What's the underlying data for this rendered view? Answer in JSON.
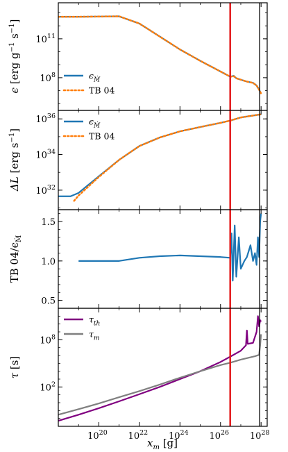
{
  "chart_data": {
    "type": "line",
    "x": {
      "label": "x_m [g]",
      "label_parts": {
        "var": "x",
        "sub": "m",
        "unit": " [g]"
      },
      "scale": "log",
      "lim": [
        1e+18,
        2e+28
      ],
      "major_ticks": [
        1e+20,
        1e+22,
        1e+24,
        1e+26,
        1e+28
      ],
      "tick_labels": [
        {
          "base": "10",
          "exp": "20"
        },
        {
          "base": "10",
          "exp": "22"
        },
        {
          "base": "10",
          "exp": "24"
        },
        {
          "base": "10",
          "exp": "26"
        },
        {
          "base": "10",
          "exp": "28"
        }
      ]
    },
    "vlines": [
      {
        "x": 3e+26,
        "color": "#e31a1c",
        "width": 2.5
      },
      {
        "x": 8.5e+27,
        "color": "#000000",
        "width": 1.3
      }
    ],
    "panels": [
      {
        "id": "epsilon",
        "ylabel": "ϵ [erg g⁻¹ s⁻¹]",
        "ylabel_parts": {
          "var": "ϵ",
          "unit": " [erg g",
          "exp1": "−1",
          "mid": " s",
          "exp2": "−1",
          "end": "]"
        },
        "yscale": "log",
        "ylim": [
          300000.0,
          60000000000000.0
        ],
        "yticks": [
          {
            "value": 100000000.0,
            "base": "10",
            "exp": "8"
          },
          {
            "value": 100000000000.0,
            "base": "10",
            "exp": "11"
          }
        ],
        "legend": {
          "placement": "lower-left",
          "entries": [
            {
              "label": "ϵ",
              "sub": "Ṁ",
              "style": "solid",
              "color": "#1f77b4"
            },
            {
              "label": "TB 04",
              "sub": "",
              "style": "dotted",
              "color": "#ff7f0e"
            }
          ]
        },
        "series": [
          {
            "name": "ϵ_Ṁ",
            "color": "#1f77b4",
            "style": "solid",
            "points": [
              [
                1e+18,
                5000000000000.0
              ],
              [
                1e+19,
                5000000000000.0
              ],
              [
                1e+20,
                5200000000000.0
              ],
              [
                1e+21,
                5400000000000.0
              ],
              [
                1e+22,
                1500000000000.0
              ],
              [
                1e+23,
                150000000000.0
              ],
              [
                1e+24,
                15000000000.0
              ],
              [
                1e+25,
                2000000000.0
              ],
              [
                1e+26,
                300000000.0
              ],
              [
                3e+26,
                120000000.0
              ],
              [
                4.5e+26,
                140000000.0
              ],
              [
                6e+26,
                90000000.0
              ],
              [
                1e+27,
                70000000.0
              ],
              [
                2e+27,
                50000000.0
              ],
              [
                4e+27,
                40000000.0
              ],
              [
                6e+27,
                25000000.0
              ],
              [
                8e+27,
                12000000.0
              ],
              [
                1e+28,
                6000000.0
              ]
            ]
          },
          {
            "name": "TB 04",
            "color": "#ff7f0e",
            "style": "dotted",
            "points": [
              [
                1e+18,
                5000000000000.0
              ],
              [
                1e+19,
                5000000000000.0
              ],
              [
                1e+20,
                5200000000000.0
              ],
              [
                1e+21,
                5400000000000.0
              ],
              [
                1e+22,
                1500000000000.0
              ],
              [
                1e+23,
                150000000000.0
              ],
              [
                1e+24,
                15000000000.0
              ],
              [
                1e+25,
                2000000000.0
              ],
              [
                1e+26,
                300000000.0
              ],
              [
                3e+26,
                120000000.0
              ],
              [
                4.5e+26,
                130000000.0
              ],
              [
                6e+26,
                90000000.0
              ],
              [
                1e+27,
                70000000.0
              ],
              [
                2e+27,
                50000000.0
              ],
              [
                4e+27,
                40000000.0
              ],
              [
                6e+27,
                25000000.0
              ],
              [
                8e+27,
                12000000.0
              ],
              [
                1e+28,
                6000000.0
              ]
            ]
          }
        ]
      },
      {
        "id": "deltaL",
        "ylabel": "ΔL [erg s⁻¹]",
        "ylabel_parts": {
          "var": "ΔL",
          "unit": " [erg s",
          "exp1": "−1",
          "end": "]"
        },
        "yscale": "log",
        "ylim": [
          8e+30,
          3e+36
        ],
        "yticks": [
          {
            "value": 1e+32,
            "base": "10",
            "exp": "32"
          },
          {
            "value": 1e+34,
            "base": "10",
            "exp": "34"
          },
          {
            "value": 1e+36,
            "base": "10",
            "exp": "36"
          }
        ],
        "legend": {
          "placement": "upper-left",
          "entries": [
            {
              "label": "ϵ",
              "sub": "Ṁ",
              "style": "solid",
              "color": "#1f77b4"
            },
            {
              "label": "TB 04",
              "sub": "",
              "style": "dotted",
              "color": "#ff7f0e"
            }
          ]
        },
        "series": [
          {
            "name": "ϵ_Ṁ",
            "color": "#1f77b4",
            "style": "solid",
            "points": [
              [
                1e+18,
                4.5e+31
              ],
              [
                4e+18,
                4.5e+31
              ],
              [
                1e+19,
                7e+31
              ],
              [
                1e+20,
                6e+32
              ],
              [
                1e+21,
                5e+33
              ],
              [
                1e+22,
                3e+34
              ],
              [
                1e+23,
                9e+34
              ],
              [
                1e+24,
                2e+35
              ],
              [
                1e+25,
                3.5e+35
              ],
              [
                1e+26,
                6e+35
              ],
              [
                3e+26,
                8e+35
              ],
              [
                1e+27,
                1.2e+36
              ],
              [
                5e+27,
                1.6e+36
              ],
              [
                1e+28,
                1.8e+36
              ]
            ]
          },
          {
            "name": "TB 04",
            "color": "#ff7f0e",
            "style": "dotted",
            "points": [
              [
                6e+18,
                2.5e+31
              ],
              [
                1e+19,
                5e+31
              ],
              [
                1e+20,
                5.5e+32
              ],
              [
                1e+21,
                5e+33
              ],
              [
                1e+22,
                3e+34
              ],
              [
                1e+23,
                9e+34
              ],
              [
                1e+24,
                2e+35
              ],
              [
                1e+25,
                3.5e+35
              ],
              [
                1e+26,
                6e+35
              ],
              [
                3e+26,
                8e+35
              ],
              [
                1e+27,
                1.2e+36
              ],
              [
                5e+27,
                1.6e+36
              ],
              [
                1e+28,
                1.8e+36
              ]
            ]
          }
        ]
      },
      {
        "id": "ratio",
        "ylabel": "TB 04/ϵ_Ṁ",
        "ylabel_parts": {
          "var": "TB 04/ϵ",
          "sub": "Ṁ"
        },
        "yscale": "linear",
        "ylim": [
          0.4,
          1.65
        ],
        "yticks": [
          {
            "value": 0.5,
            "label": "0.5"
          },
          {
            "value": 1.0,
            "label": "1.0"
          },
          {
            "value": 1.5,
            "label": "1.5"
          }
        ],
        "series": [
          {
            "name": "TB 04/ϵ_Ṁ",
            "color": "#1f77b4",
            "style": "solid",
            "points": [
              [
                1e+19,
                1.0
              ],
              [
                1e+20,
                1.0
              ],
              [
                1e+21,
                1.0
              ],
              [
                1e+22,
                1.04
              ],
              [
                1e+23,
                1.06
              ],
              [
                1e+24,
                1.07
              ],
              [
                1e+25,
                1.06
              ],
              [
                1e+26,
                1.05
              ],
              [
                3e+26,
                1.04
              ],
              [
                3.5e+26,
                1.35
              ],
              [
                4e+26,
                0.75
              ],
              [
                5e+26,
                1.45
              ],
              [
                6e+26,
                0.8
              ],
              [
                8e+26,
                1.3
              ],
              [
                1e+27,
                0.9
              ],
              [
                1.5e+27,
                1.0
              ],
              [
                2e+27,
                1.05
              ],
              [
                3e+27,
                1.2
              ],
              [
                4e+27,
                1.0
              ],
              [
                5e+27,
                1.1
              ],
              [
                6e+27,
                0.95
              ],
              [
                7e+27,
                1.3
              ],
              [
                8e+27,
                1.05
              ],
              [
                9e+27,
                1.5
              ],
              [
                1e+28,
                1.6
              ]
            ]
          }
        ]
      },
      {
        "id": "tau",
        "ylabel": "τ [s]",
        "ylabel_parts": {
          "var": "τ",
          "unit": " [s]"
        },
        "yscale": "log",
        "ylim": [
          0.001,
          1000000000000.0
        ],
        "yticks": [
          {
            "value": 100.0,
            "base": "10",
            "exp": "2"
          },
          {
            "value": 100000000.0,
            "base": "10",
            "exp": "8"
          }
        ],
        "legend": {
          "placement": "upper-left",
          "entries": [
            {
              "label": "τ",
              "sub": "th",
              "style": "solid",
              "color": "#800080"
            },
            {
              "label": "τ",
              "sub": "m",
              "style": "solid",
              "color": "#808080"
            }
          ]
        },
        "series": [
          {
            "name": "τ_th",
            "color": "#800080",
            "style": "solid",
            "points": [
              [
                1e+18,
                0.005
              ],
              [
                1e+19,
                0.03
              ],
              [
                1e+20,
                0.2
              ],
              [
                1e+21,
                1.5
              ],
              [
                1e+22,
                12
              ],
              [
                1e+23,
                100
              ],
              [
                1e+24,
                1000.0
              ],
              [
                1e+25,
                10000.0
              ],
              [
                1e+26,
                150000.0
              ],
              [
                3e+26,
                700000.0
              ],
              [
                1e+27,
                4000000.0
              ],
              [
                1.8e+27,
                20000000.0
              ],
              [
                2e+27,
                1500000000.0
              ],
              [
                2.2e+27,
                30000000.0
              ],
              [
                4e+27,
                40000000.0
              ],
              [
                6e+27,
                1000000000.0
              ],
              [
                7e+27,
                100000000000.0
              ],
              [
                8e+27,
                5000000000.0
              ],
              [
                9e+27,
                30000000000.0
              ],
              [
                1e+28,
                20000000000.0
              ]
            ]
          },
          {
            "name": "τ_m",
            "color": "#808080",
            "style": "solid",
            "points": [
              [
                1e+18,
                0.03
              ],
              [
                1e+19,
                0.15
              ],
              [
                1e+20,
                0.8
              ],
              [
                1e+21,
                5
              ],
              [
                1e+22,
                30
              ],
              [
                1e+23,
                200
              ],
              [
                1e+24,
                1500.0
              ],
              [
                1e+25,
                10000.0
              ],
              [
                1e+26,
                60000.0
              ],
              [
                3e+26,
                120000.0
              ],
              [
                1e+27,
                300000.0
              ],
              [
                5e+27,
                800000.0
              ],
              [
                8e+27,
                1200000.0
              ],
              [
                9e+27,
                20000000.0
              ],
              [
                1e+28,
                500000000.0
              ]
            ]
          }
        ]
      }
    ]
  }
}
